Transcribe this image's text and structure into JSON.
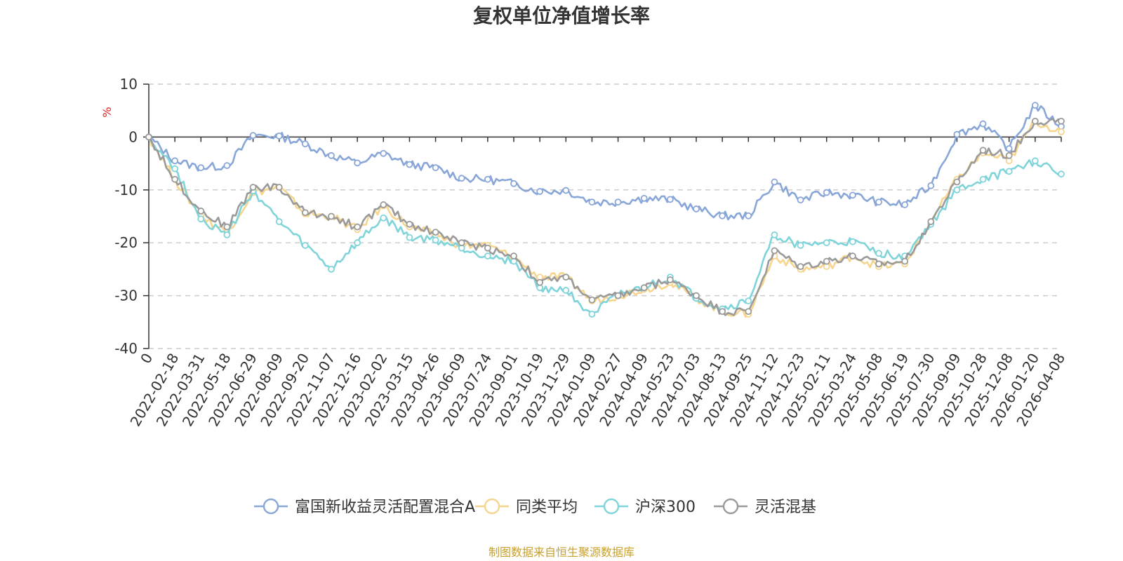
{
  "chart_data": {
    "type": "line",
    "title": "复权单位净值增长率",
    "ylabel": "%",
    "xlabel": "",
    "ylim": [
      -40,
      10
    ],
    "yticks": [
      10,
      0,
      -10,
      -20,
      -30,
      -40
    ],
    "x_tick_labels": [
      "0",
      "2022-02-18",
      "2022-03-31",
      "2022-05-18",
      "2022-06-29",
      "2022-08-09",
      "2022-09-20",
      "2022-11-07",
      "2022-12-16",
      "2023-02-02",
      "2023-03-15",
      "2023-04-26",
      "2023-06-09",
      "2023-07-24",
      "2023-09-01",
      "2023-10-19",
      "2023-11-29",
      "2024-01-09",
      "2024-02-27",
      "2024-04-09",
      "2024-05-23",
      "2024-07-03",
      "2024-08-13",
      "2024-09-25",
      "2024-11-12",
      "2024-12-23",
      "2025-02-11",
      "2025-03-24",
      "2025-05-08",
      "2025-06-19",
      "2025-07-30",
      "2025-09-09",
      "2025-10-28",
      "2025-12-08",
      "2026-01-20",
      "2026-04-08"
    ],
    "x": [
      "0",
      "2022-02-18",
      "2022-03-31",
      "2022-05-18",
      "2022-06-29",
      "2022-08-09",
      "2022-09-20",
      "2022-11-07",
      "2022-12-16",
      "2023-02-02",
      "2023-03-15",
      "2023-04-26",
      "2023-06-09",
      "2023-07-24",
      "2023-09-01",
      "2023-10-19",
      "2023-11-29",
      "2024-01-09",
      "2024-02-27",
      "2024-04-09",
      "2024-05-23",
      "2024-07-03",
      "2024-08-13",
      "2024-09-25",
      "2024-11-12",
      "2024-12-23",
      "2025-02-11",
      "2025-03-24",
      "2025-05-08",
      "2025-06-19",
      "2025-07-30",
      "2025-09-09",
      "2025-10-28",
      "2025-12-08",
      "2026-01-20",
      "2026-04-08"
    ],
    "series": [
      {
        "name": "富国新收益灵活配置混合A",
        "color": "#89a6d8",
        "values": [
          0,
          -4.5,
          -5.8,
          -5.4,
          0.3,
          0.2,
          -1.3,
          -3.5,
          -4.9,
          -3.1,
          -5.2,
          -5.8,
          -7.8,
          -8.0,
          -8.8,
          -10.3,
          -10.1,
          -12.3,
          -12.3,
          -11.6,
          -11.8,
          -13.6,
          -14.9,
          -14.9,
          -8.5,
          -11.9,
          -10.5,
          -11.0,
          -12.3,
          -12.8,
          -9.2,
          0.5,
          2.5,
          -2.2,
          6.0,
          2.0
        ]
      },
      {
        "name": "同类平均",
        "color": "#f6d58e",
        "values": [
          0,
          -8.0,
          -15.0,
          -18.0,
          -10.5,
          -9.5,
          -14.5,
          -15.0,
          -17.5,
          -13.0,
          -17.0,
          -18.5,
          -20.5,
          -20.5,
          -22.8,
          -26.5,
          -26.5,
          -31.0,
          -30.0,
          -28.8,
          -27.5,
          -30.5,
          -33.0,
          -33.5,
          -22.5,
          -25.0,
          -24.5,
          -22.5,
          -24.5,
          -24.0,
          -16.0,
          -8.0,
          -3.0,
          -4.5,
          3.0,
          1.0
        ]
      },
      {
        "name": "沪深300",
        "color": "#7fd4da",
        "values": [
          0,
          -6.0,
          -15.5,
          -18.5,
          -10.2,
          -16.0,
          -20.5,
          -25.0,
          -20.0,
          -15.3,
          -19.0,
          -19.5,
          -21.0,
          -22.5,
          -23.5,
          -28.5,
          -29.0,
          -33.5,
          -30.0,
          -28.5,
          -26.5,
          -30.5,
          -32.5,
          -31.0,
          -18.5,
          -20.5,
          -20.0,
          -19.8,
          -22.0,
          -22.5,
          -16.5,
          -10.0,
          -8.0,
          -6.5,
          -4.5,
          -7.0
        ]
      },
      {
        "name": "灵活混基",
        "color": "#9a9a9a",
        "values": [
          0,
          -8.0,
          -14.0,
          -17.0,
          -9.5,
          -9.5,
          -14.3,
          -15.0,
          -17.0,
          -12.8,
          -16.5,
          -18.0,
          -20.0,
          -21.0,
          -22.5,
          -27.5,
          -26.5,
          -30.8,
          -30.0,
          -28.5,
          -27.0,
          -30.0,
          -33.0,
          -33.0,
          -21.5,
          -24.5,
          -23.5,
          -22.5,
          -24.0,
          -23.5,
          -16.0,
          -8.5,
          -2.5,
          -3.5,
          3.0,
          3.0
        ]
      }
    ],
    "legend_position": "bottom",
    "grid": true
  },
  "source_text": "制图数据来自恒生聚源数据库",
  "colors": {
    "title": "#333333",
    "ylabel": "#e02020",
    "source": "#c8a02c",
    "grid": "#cccccc",
    "axis": "#333333"
  }
}
